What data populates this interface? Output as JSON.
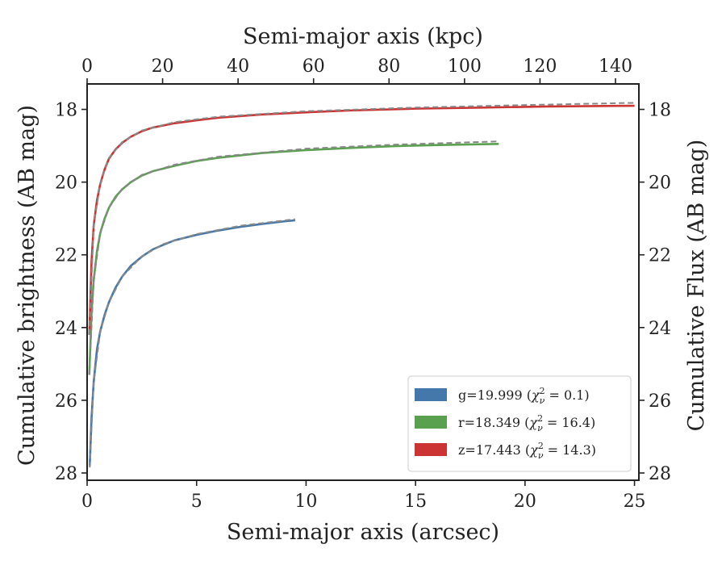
{
  "chart_data": {
    "type": "line",
    "xlabel": "Semi-major axis (arcsec)",
    "x2label": "Semi-major axis (kpc)",
    "ylabel": "Cumulative brightness (AB mag)",
    "y2label": "Cumulative Flux (AB mag)",
    "xlim": [
      0,
      25.2
    ],
    "x2lim": [
      0,
      146.2
    ],
    "ylim": [
      28.2,
      17.3
    ],
    "y_inverted": true,
    "xticks": [
      0,
      5,
      10,
      15,
      20,
      25
    ],
    "x2ticks": [
      0,
      20,
      40,
      60,
      80,
      100,
      120,
      140
    ],
    "yticks": [
      18,
      20,
      22,
      24,
      26,
      28
    ],
    "grid": false,
    "legend_position": "lower-right",
    "series": [
      {
        "name": "g=19.999 (χ²ν = 0.1)",
        "legend": {
          "prefix": "g=19.999 (",
          "chi": "χ",
          "sup": "2",
          "sub": "ν",
          "suffix": " = 0.1)"
        },
        "color": "#4477aa",
        "x": [
          0.12,
          0.2,
          0.3,
          0.45,
          0.6,
          0.8,
          1.0,
          1.3,
          1.6,
          2.0,
          2.5,
          3.0,
          3.5,
          4.0,
          5.0,
          6.0,
          7.0,
          8.0,
          9.0,
          9.5
        ],
        "y": [
          27.8,
          26.5,
          25.5,
          24.6,
          24.1,
          23.65,
          23.3,
          22.9,
          22.6,
          22.3,
          22.05,
          21.85,
          21.72,
          21.6,
          21.45,
          21.33,
          21.23,
          21.15,
          21.08,
          21.05
        ],
        "model_x": [
          0.12,
          0.3,
          0.6,
          1.0,
          1.6,
          2.5,
          3.5,
          5.0,
          7.0,
          9.5
        ],
        "model_y": [
          27.85,
          25.5,
          24.1,
          23.3,
          22.6,
          22.04,
          21.7,
          21.43,
          21.2,
          21.02
        ]
      },
      {
        "name": "r=18.349 (χ²ν = 16.4)",
        "legend": {
          "prefix": "r=18.349 (",
          "chi": "χ",
          "sup": "2",
          "sub": "ν",
          "suffix": " = 16.4)"
        },
        "color": "#59a14f",
        "x": [
          0.1,
          0.2,
          0.3,
          0.45,
          0.6,
          0.8,
          1.0,
          1.3,
          1.6,
          2.0,
          2.5,
          3.0,
          4.0,
          5.0,
          6.0,
          8.0,
          10.0,
          12.0,
          14.0,
          16.0,
          18.8
        ],
        "y": [
          25.3,
          23.6,
          22.7,
          21.9,
          21.4,
          21.0,
          20.7,
          20.4,
          20.2,
          20.0,
          19.82,
          19.7,
          19.55,
          19.42,
          19.33,
          19.2,
          19.12,
          19.06,
          19.01,
          18.98,
          18.95
        ],
        "model_x": [
          0.1,
          0.3,
          0.6,
          1.0,
          1.6,
          2.5,
          4.0,
          6.0,
          10.0,
          14.0,
          18.8
        ],
        "model_y": [
          25.3,
          22.7,
          21.4,
          20.7,
          20.18,
          19.8,
          19.52,
          19.3,
          19.08,
          18.97,
          18.88
        ]
      },
      {
        "name": "z=17.443 (χ²ν = 14.3)",
        "legend": {
          "prefix": "z=17.443 (",
          "chi": "χ",
          "sup": "2",
          "sub": "ν",
          "suffix": " = 14.3)"
        },
        "color": "#cc3333",
        "x": [
          0.1,
          0.2,
          0.3,
          0.45,
          0.6,
          0.8,
          1.0,
          1.3,
          1.6,
          2.0,
          2.5,
          3.0,
          4.0,
          5.0,
          6.0,
          8.0,
          10.0,
          12.0,
          15.0,
          18.0,
          21.0,
          25.0
        ],
        "y": [
          24.2,
          22.2,
          21.2,
          20.5,
          20.05,
          19.65,
          19.35,
          19.1,
          18.92,
          18.75,
          18.6,
          18.5,
          18.38,
          18.3,
          18.23,
          18.14,
          18.08,
          18.03,
          17.98,
          17.95,
          17.92,
          17.9
        ],
        "model_x": [
          0.1,
          0.3,
          0.6,
          1.0,
          1.6,
          2.5,
          4.0,
          6.0,
          10.0,
          15.0,
          20.0,
          25.0
        ],
        "model_y": [
          24.2,
          21.2,
          20.03,
          19.33,
          18.9,
          18.58,
          18.35,
          18.2,
          18.05,
          17.95,
          17.88,
          17.82
        ]
      }
    ],
    "model_line_color": "#888888"
  }
}
